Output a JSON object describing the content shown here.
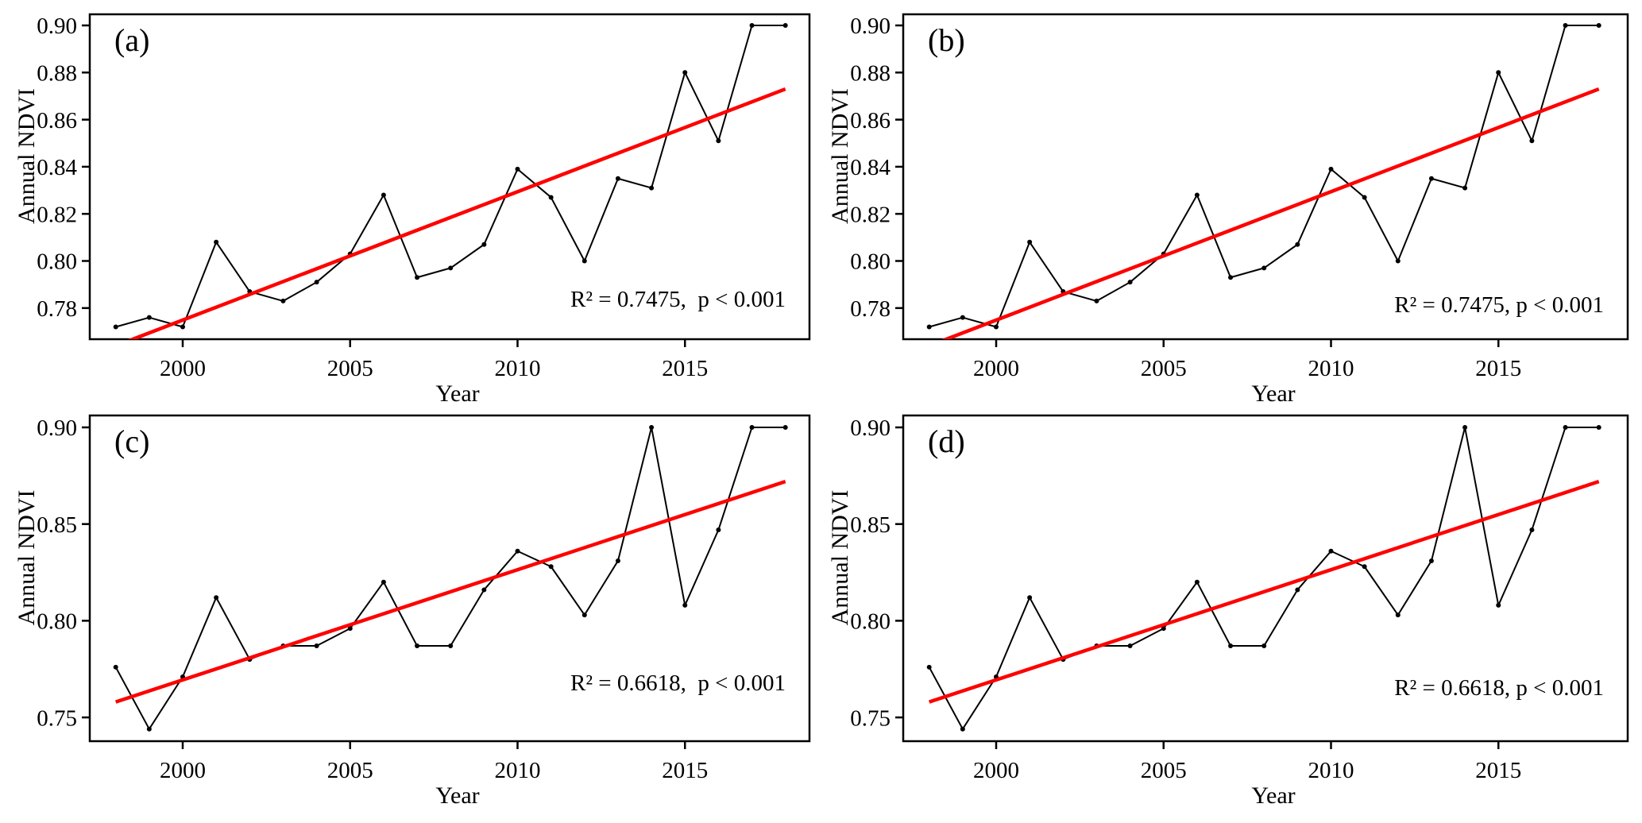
{
  "figure": {
    "background": "#ffffff",
    "series_color": "#000000",
    "trend_color": "#ff0000"
  },
  "chart_data": [
    {
      "id": "a",
      "type": "line",
      "panel_label": "(a)",
      "xlabel": "Year",
      "ylabel": "Annual NDVI",
      "x": [
        1998,
        1999,
        2000,
        2001,
        2002,
        2003,
        2004,
        2005,
        2006,
        2007,
        2008,
        2009,
        2010,
        2011,
        2012,
        2013,
        2014,
        2015,
        2016,
        2017,
        2018
      ],
      "series": [
        {
          "name": "Annual NDVI",
          "color": "#000000",
          "marker": "circle",
          "values": [
            0.772,
            0.776,
            0.772,
            0.808,
            0.787,
            0.783,
            0.791,
            0.803,
            0.828,
            0.793,
            0.797,
            0.807,
            0.839,
            0.827,
            0.8,
            0.835,
            0.831,
            0.88,
            0.851,
            0.9,
            0.9
          ]
        }
      ],
      "trendline": {
        "color": "#ff0000",
        "x": [
          1998,
          2018
        ],
        "y": [
          0.764,
          0.873
        ]
      },
      "annotation": "R² = 0.7475,  p < 0.001",
      "r_squared": "0.7475",
      "p_text": "p < 0.001",
      "xlim": [
        1997.2,
        2018.7
      ],
      "ylim": [
        0.7668,
        0.9047
      ],
      "xticks": [
        2000,
        2005,
        2010,
        2015
      ],
      "ytick_labels": [
        "0.78",
        "0.80",
        "0.82",
        "0.84",
        "0.86",
        "0.88",
        "0.90"
      ],
      "grid": false,
      "legend": null
    },
    {
      "id": "b",
      "type": "line",
      "panel_label": "(b)",
      "xlabel": "Year",
      "ylabel": "Annual NDVI",
      "x": [
        1998,
        1999,
        2000,
        2001,
        2002,
        2003,
        2004,
        2005,
        2006,
        2007,
        2008,
        2009,
        2010,
        2011,
        2012,
        2013,
        2014,
        2015,
        2016,
        2017,
        2018
      ],
      "series": [
        {
          "name": "Annual NDVI",
          "color": "#000000",
          "marker": "circle",
          "values": [
            0.772,
            0.776,
            0.772,
            0.808,
            0.787,
            0.783,
            0.791,
            0.803,
            0.828,
            0.793,
            0.797,
            0.807,
            0.839,
            0.827,
            0.8,
            0.835,
            0.831,
            0.88,
            0.851,
            0.9,
            0.9
          ]
        }
      ],
      "trendline": {
        "color": "#ff0000",
        "x": [
          1998,
          2018
        ],
        "y": [
          0.764,
          0.873
        ]
      },
      "annotation": "R² = 0.7475, p < 0.001",
      "r_squared": "0.7475",
      "p_text": "p < 0.001",
      "xlim": [
        1997.2,
        2018.7
      ],
      "ylim": [
        0.7668,
        0.9047
      ],
      "xticks": [
        2000,
        2005,
        2010,
        2015
      ],
      "ytick_labels": [
        "0.78",
        "0.80",
        "0.82",
        "0.84",
        "0.86",
        "0.88",
        "0.90"
      ],
      "grid": false,
      "legend": null
    },
    {
      "id": "c",
      "type": "line",
      "panel_label": "(c)",
      "xlabel": "Year",
      "ylabel": "Annual NDVI",
      "x": [
        1998,
        1999,
        2000,
        2001,
        2002,
        2003,
        2004,
        2005,
        2006,
        2007,
        2008,
        2009,
        2010,
        2011,
        2012,
        2013,
        2014,
        2015,
        2016,
        2017,
        2018
      ],
      "series": [
        {
          "name": "Annual NDVI",
          "color": "#000000",
          "marker": "circle",
          "values": [
            0.776,
            0.744,
            0.771,
            0.812,
            0.78,
            0.787,
            0.787,
            0.796,
            0.82,
            0.787,
            0.787,
            0.816,
            0.836,
            0.828,
            0.803,
            0.831,
            0.9,
            0.808,
            0.847,
            0.9,
            0.9
          ]
        }
      ],
      "trendline": {
        "color": "#ff0000",
        "x": [
          1998,
          2018
        ],
        "y": [
          0.758,
          0.872
        ]
      },
      "annotation": "R² = 0.6618,  p < 0.001",
      "r_squared": "0.6618",
      "p_text": "p < 0.001",
      "xlim": [
        1997.2,
        2018.7
      ],
      "ylim": [
        0.7377,
        0.9062
      ],
      "xticks": [
        2000,
        2005,
        2010,
        2015
      ],
      "ytick_labels": [
        "0.75",
        "0.80",
        "0.85",
        "0.90"
      ],
      "grid": false,
      "legend": null
    },
    {
      "id": "d",
      "type": "line",
      "panel_label": "(d)",
      "xlabel": "Year",
      "ylabel": "Annual NDVI",
      "x": [
        1998,
        1999,
        2000,
        2001,
        2002,
        2003,
        2004,
        2005,
        2006,
        2007,
        2008,
        2009,
        2010,
        2011,
        2012,
        2013,
        2014,
        2015,
        2016,
        2017,
        2018
      ],
      "series": [
        {
          "name": "Annual NDVI",
          "color": "#000000",
          "marker": "circle",
          "values": [
            0.776,
            0.744,
            0.771,
            0.812,
            0.78,
            0.787,
            0.787,
            0.796,
            0.82,
            0.787,
            0.787,
            0.816,
            0.836,
            0.828,
            0.803,
            0.831,
            0.9,
            0.808,
            0.847,
            0.9,
            0.9
          ]
        }
      ],
      "trendline": {
        "color": "#ff0000",
        "x": [
          1998,
          2018
        ],
        "y": [
          0.758,
          0.872
        ]
      },
      "annotation": "R² = 0.6618, p < 0.001",
      "r_squared": "0.6618",
      "p_text": "p < 0.001",
      "xlim": [
        1997.2,
        2018.7
      ],
      "ylim": [
        0.7377,
        0.9062
      ],
      "xticks": [
        2000,
        2005,
        2010,
        2015
      ],
      "ytick_labels": [
        "0.75",
        "0.80",
        "0.85",
        "0.90"
      ],
      "grid": false,
      "legend": null
    }
  ]
}
